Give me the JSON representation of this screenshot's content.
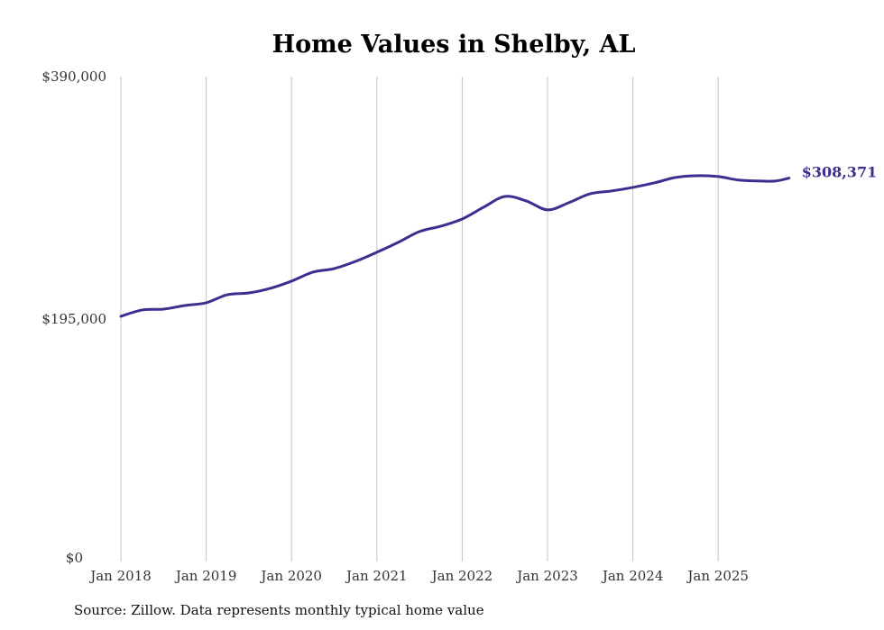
{
  "chart_data": {
    "type": "line",
    "title": "Home Values in Shelby, AL",
    "xlabel": "",
    "ylabel": "",
    "ylim": [
      0,
      390000
    ],
    "y_ticks": [
      {
        "value": 0,
        "label": "$0"
      },
      {
        "value": 195000,
        "label": "$195,000"
      },
      {
        "value": 390000,
        "label": "$390,000"
      }
    ],
    "x_ticks": [
      {
        "value": 2018,
        "label": "Jan 2018"
      },
      {
        "value": 2019,
        "label": "Jan 2019"
      },
      {
        "value": 2020,
        "label": "Jan 2020"
      },
      {
        "value": 2021,
        "label": "Jan 2021"
      },
      {
        "value": 2022,
        "label": "Jan 2022"
      },
      {
        "value": 2023,
        "label": "Jan 2023"
      },
      {
        "value": 2024,
        "label": "Jan 2024"
      },
      {
        "value": 2025,
        "label": "Jan 2025"
      }
    ],
    "xlim": [
      2018,
      2025.83
    ],
    "grid": "vertical",
    "series": [
      {
        "name": "Typical home value",
        "color": "#3b2f8f",
        "x": [
          2018.0,
          2018.25,
          2018.5,
          2018.75,
          2019.0,
          2019.25,
          2019.5,
          2019.75,
          2020.0,
          2020.25,
          2020.5,
          2020.75,
          2021.0,
          2021.25,
          2021.5,
          2021.75,
          2022.0,
          2022.25,
          2022.5,
          2022.75,
          2023.0,
          2023.25,
          2023.5,
          2023.75,
          2024.0,
          2024.25,
          2024.5,
          2024.75,
          2025.0,
          2025.25,
          2025.5,
          2025.67,
          2025.83
        ],
        "values": [
          197200,
          202300,
          203000,
          205900,
          208100,
          214600,
          216000,
          219700,
          225500,
          232700,
          235600,
          241400,
          248700,
          256700,
          265400,
          269700,
          275500,
          284900,
          293600,
          290000,
          282800,
          288600,
          295800,
          298000,
          300900,
          304500,
          308900,
          310300,
          309600,
          306700,
          306000,
          306000,
          308371
        ]
      }
    ],
    "end_label": "$308,371"
  },
  "source": "Source: Zillow. Data represents monthly typical home value"
}
